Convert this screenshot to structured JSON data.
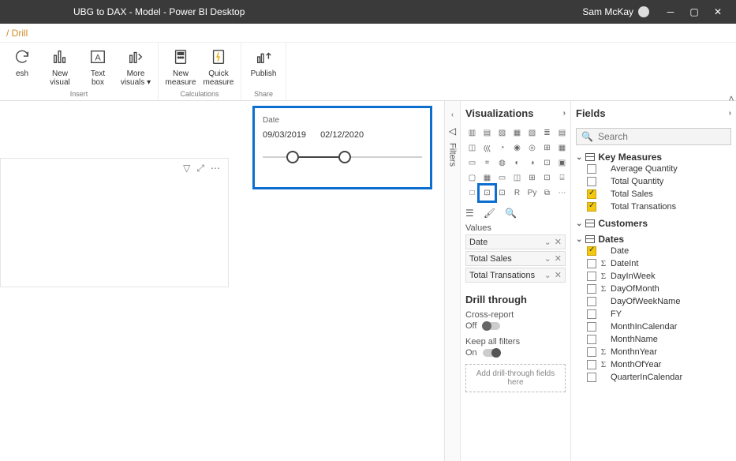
{
  "window": {
    "title": "UBG to DAX - Model - Power BI Desktop",
    "user": "Sam McKay"
  },
  "breadcrumb": " / Drill",
  "ribbon": {
    "groups": [
      {
        "label": "Insert",
        "buttons": [
          {
            "key": "refresh",
            "line1": "esh",
            "line2": ""
          },
          {
            "key": "newvisual",
            "line1": "New",
            "line2": "visual"
          },
          {
            "key": "textbox",
            "line1": "Text",
            "line2": "box"
          },
          {
            "key": "morevisuals",
            "line1": "More",
            "line2": "visuals ▾"
          }
        ]
      },
      {
        "label": "Calculations",
        "buttons": [
          {
            "key": "newmeasure",
            "line1": "New",
            "line2": "measure"
          },
          {
            "key": "quickmeasure",
            "line1": "Quick",
            "line2": "measure"
          }
        ]
      },
      {
        "label": "Share",
        "buttons": [
          {
            "key": "publish",
            "line1": "Publish",
            "line2": ""
          }
        ]
      }
    ]
  },
  "slicer": {
    "title": "Date",
    "from": "09/03/2019",
    "to": "02/12/2020"
  },
  "filters_tab": "Filters",
  "viz": {
    "title": "Visualizations",
    "values_label": "Values",
    "wells": [
      "Date",
      "Total Sales",
      "Total Transations"
    ],
    "drill_title": "Drill through",
    "cross_report": "Cross-report",
    "off": "Off",
    "keep_filters": "Keep all filters",
    "on": "On",
    "drop": "Add drill-through fields here"
  },
  "fields": {
    "title": "Fields",
    "search_placeholder": "Search",
    "groups": [
      {
        "name": "Key Measures",
        "items": [
          {
            "label": "Average Quantity",
            "checked": false,
            "sigma": false
          },
          {
            "label": "Total Quantity",
            "checked": false,
            "sigma": false
          },
          {
            "label": "Total Sales",
            "checked": true,
            "sigma": false
          },
          {
            "label": "Total Transations",
            "checked": true,
            "sigma": false
          }
        ]
      },
      {
        "name": "Customers",
        "items": []
      },
      {
        "name": "Dates",
        "items": [
          {
            "label": "Date",
            "checked": true,
            "sigma": false
          },
          {
            "label": "DateInt",
            "checked": false,
            "sigma": true
          },
          {
            "label": "DayInWeek",
            "checked": false,
            "sigma": true
          },
          {
            "label": "DayOfMonth",
            "checked": false,
            "sigma": true
          },
          {
            "label": "DayOfWeekName",
            "checked": false,
            "sigma": false
          },
          {
            "label": "FY",
            "checked": false,
            "sigma": false
          },
          {
            "label": "MonthInCalendar",
            "checked": false,
            "sigma": false
          },
          {
            "label": "MonthName",
            "checked": false,
            "sigma": false
          },
          {
            "label": "MonthnYear",
            "checked": false,
            "sigma": true
          },
          {
            "label": "MonthOfYear",
            "checked": false,
            "sigma": true
          },
          {
            "label": "QuarterInCalendar",
            "checked": false,
            "sigma": false
          }
        ]
      }
    ]
  }
}
